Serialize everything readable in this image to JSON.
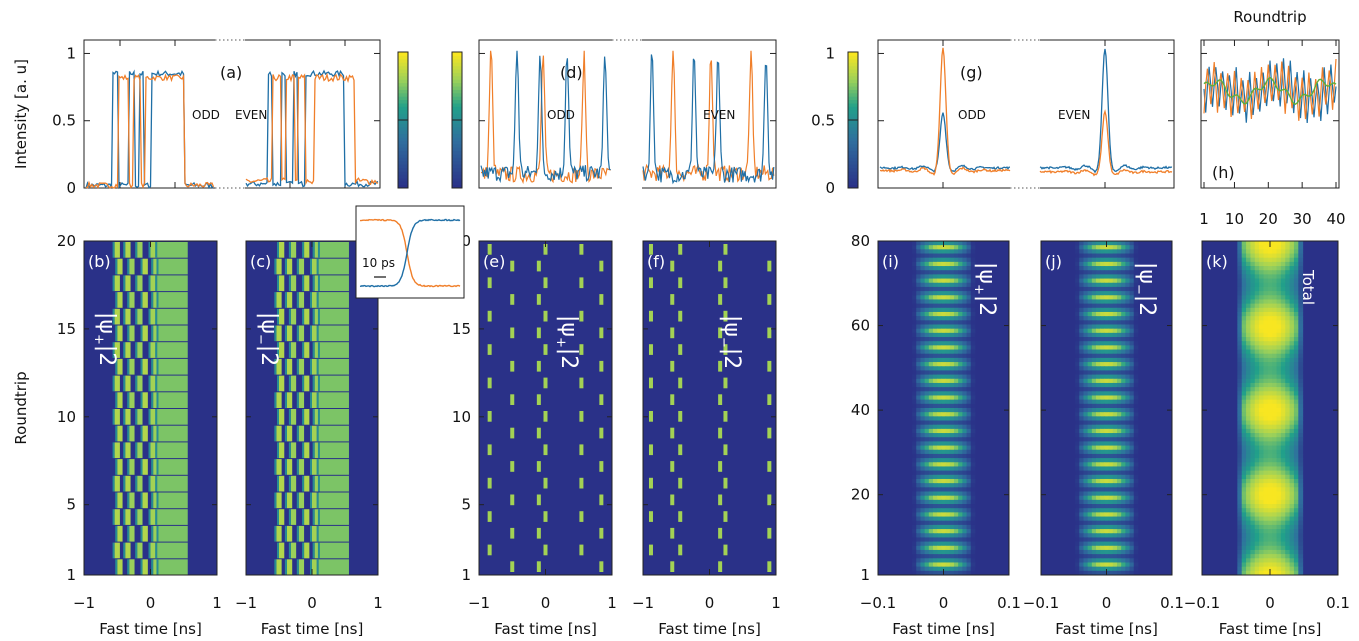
{
  "chart_data": {
    "type": "line",
    "intensity_ylabel": "Intensity [a. u]",
    "roundtrip_ylabel": "Roundtrip",
    "fast_time_xlabel": "Fast time [ns]",
    "colorscale": {
      "low": "#2a3188",
      "mid": "#21a08a",
      "high": "#f8e621"
    },
    "series_colors": [
      "#1f6fa6",
      "#f07f2a"
    ],
    "line_panels": [
      {
        "tag": "(a)",
        "labels": [
          "ODD",
          "EVEN"
        ],
        "ylim": [
          0,
          1.1
        ],
        "yticks": [
          "0",
          "0.5",
          "1"
        ],
        "description": "square-wave pulse trains, two states alternating"
      },
      {
        "tag": "(d)",
        "labels": [
          "ODD",
          "EVEN"
        ],
        "ylim": [
          0,
          1.1
        ],
        "description": "narrow spike trains"
      },
      {
        "tag": "(g)",
        "labels": [
          "ODD",
          "EVEN"
        ],
        "ylim": [
          0,
          1.1
        ],
        "yticks": [
          "0",
          "0.5",
          "1"
        ],
        "peaks": {
          "odd": {
            "blue": 0.52,
            "orange": 1.0
          },
          "even": {
            "blue": 1.0,
            "orange": 0.55
          }
        }
      },
      {
        "tag": "(h)",
        "xlabel": "Roundtrip",
        "xticks": [
          "1",
          "10",
          "20",
          "30",
          "40"
        ],
        "xlim": [
          1,
          40
        ]
      }
    ],
    "inset": {
      "scale_label": "10 ps"
    },
    "map_panels": [
      {
        "tag": "(b)",
        "label": "|ψ+|²",
        "label_main": "|ψ",
        "label_sub": "+",
        "label_sup": "|2",
        "xlim": [
          -1,
          1
        ],
        "ylim": [
          1,
          20
        ]
      },
      {
        "tag": "(c)",
        "label": "|ψ−|²",
        "label_main": "|ψ",
        "label_sub": "−",
        "label_sup": "|2",
        "xlim": [
          -1,
          1
        ],
        "ylim": [
          1,
          20
        ]
      },
      {
        "tag": "(e)",
        "label": "|ψ+|²",
        "label_main": "|ψ",
        "label_sub": "+",
        "label_sup": "|2",
        "xlim": [
          -1,
          1
        ],
        "ylim": [
          1,
          20
        ]
      },
      {
        "tag": "(f)",
        "label": "|ψ−|²",
        "label_main": "|ψ",
        "label_sub": "−",
        "label_sup": "|2",
        "xlim": [
          -1,
          1
        ],
        "ylim": [
          1,
          20
        ]
      },
      {
        "tag": "(i)",
        "label": "|ψ+|²",
        "label_main": "|ψ",
        "label_sub": "+",
        "label_sup": "|2",
        "xlim": [
          -0.1,
          0.1
        ],
        "ylim": [
          1,
          80
        ]
      },
      {
        "tag": "(j)",
        "label": "|ψ−|²",
        "label_main": "|ψ",
        "label_sub": "−",
        "label_sup": "|2",
        "xlim": [
          -0.1,
          0.1
        ],
        "ylim": [
          1,
          80
        ]
      },
      {
        "tag": "(k)",
        "label": "Total",
        "xlim": [
          -0.1,
          0.1
        ],
        "ylim": [
          1,
          80
        ]
      }
    ],
    "ticks": {
      "ns": [
        "−1",
        "0",
        "1"
      ],
      "sub_ns": [
        "−0.1",
        "0",
        "0.1"
      ],
      "roundtrip_20": [
        "1",
        "5",
        "10",
        "15",
        "20"
      ],
      "roundtrip_80": [
        "1",
        "20",
        "40",
        "60",
        "80"
      ]
    }
  }
}
